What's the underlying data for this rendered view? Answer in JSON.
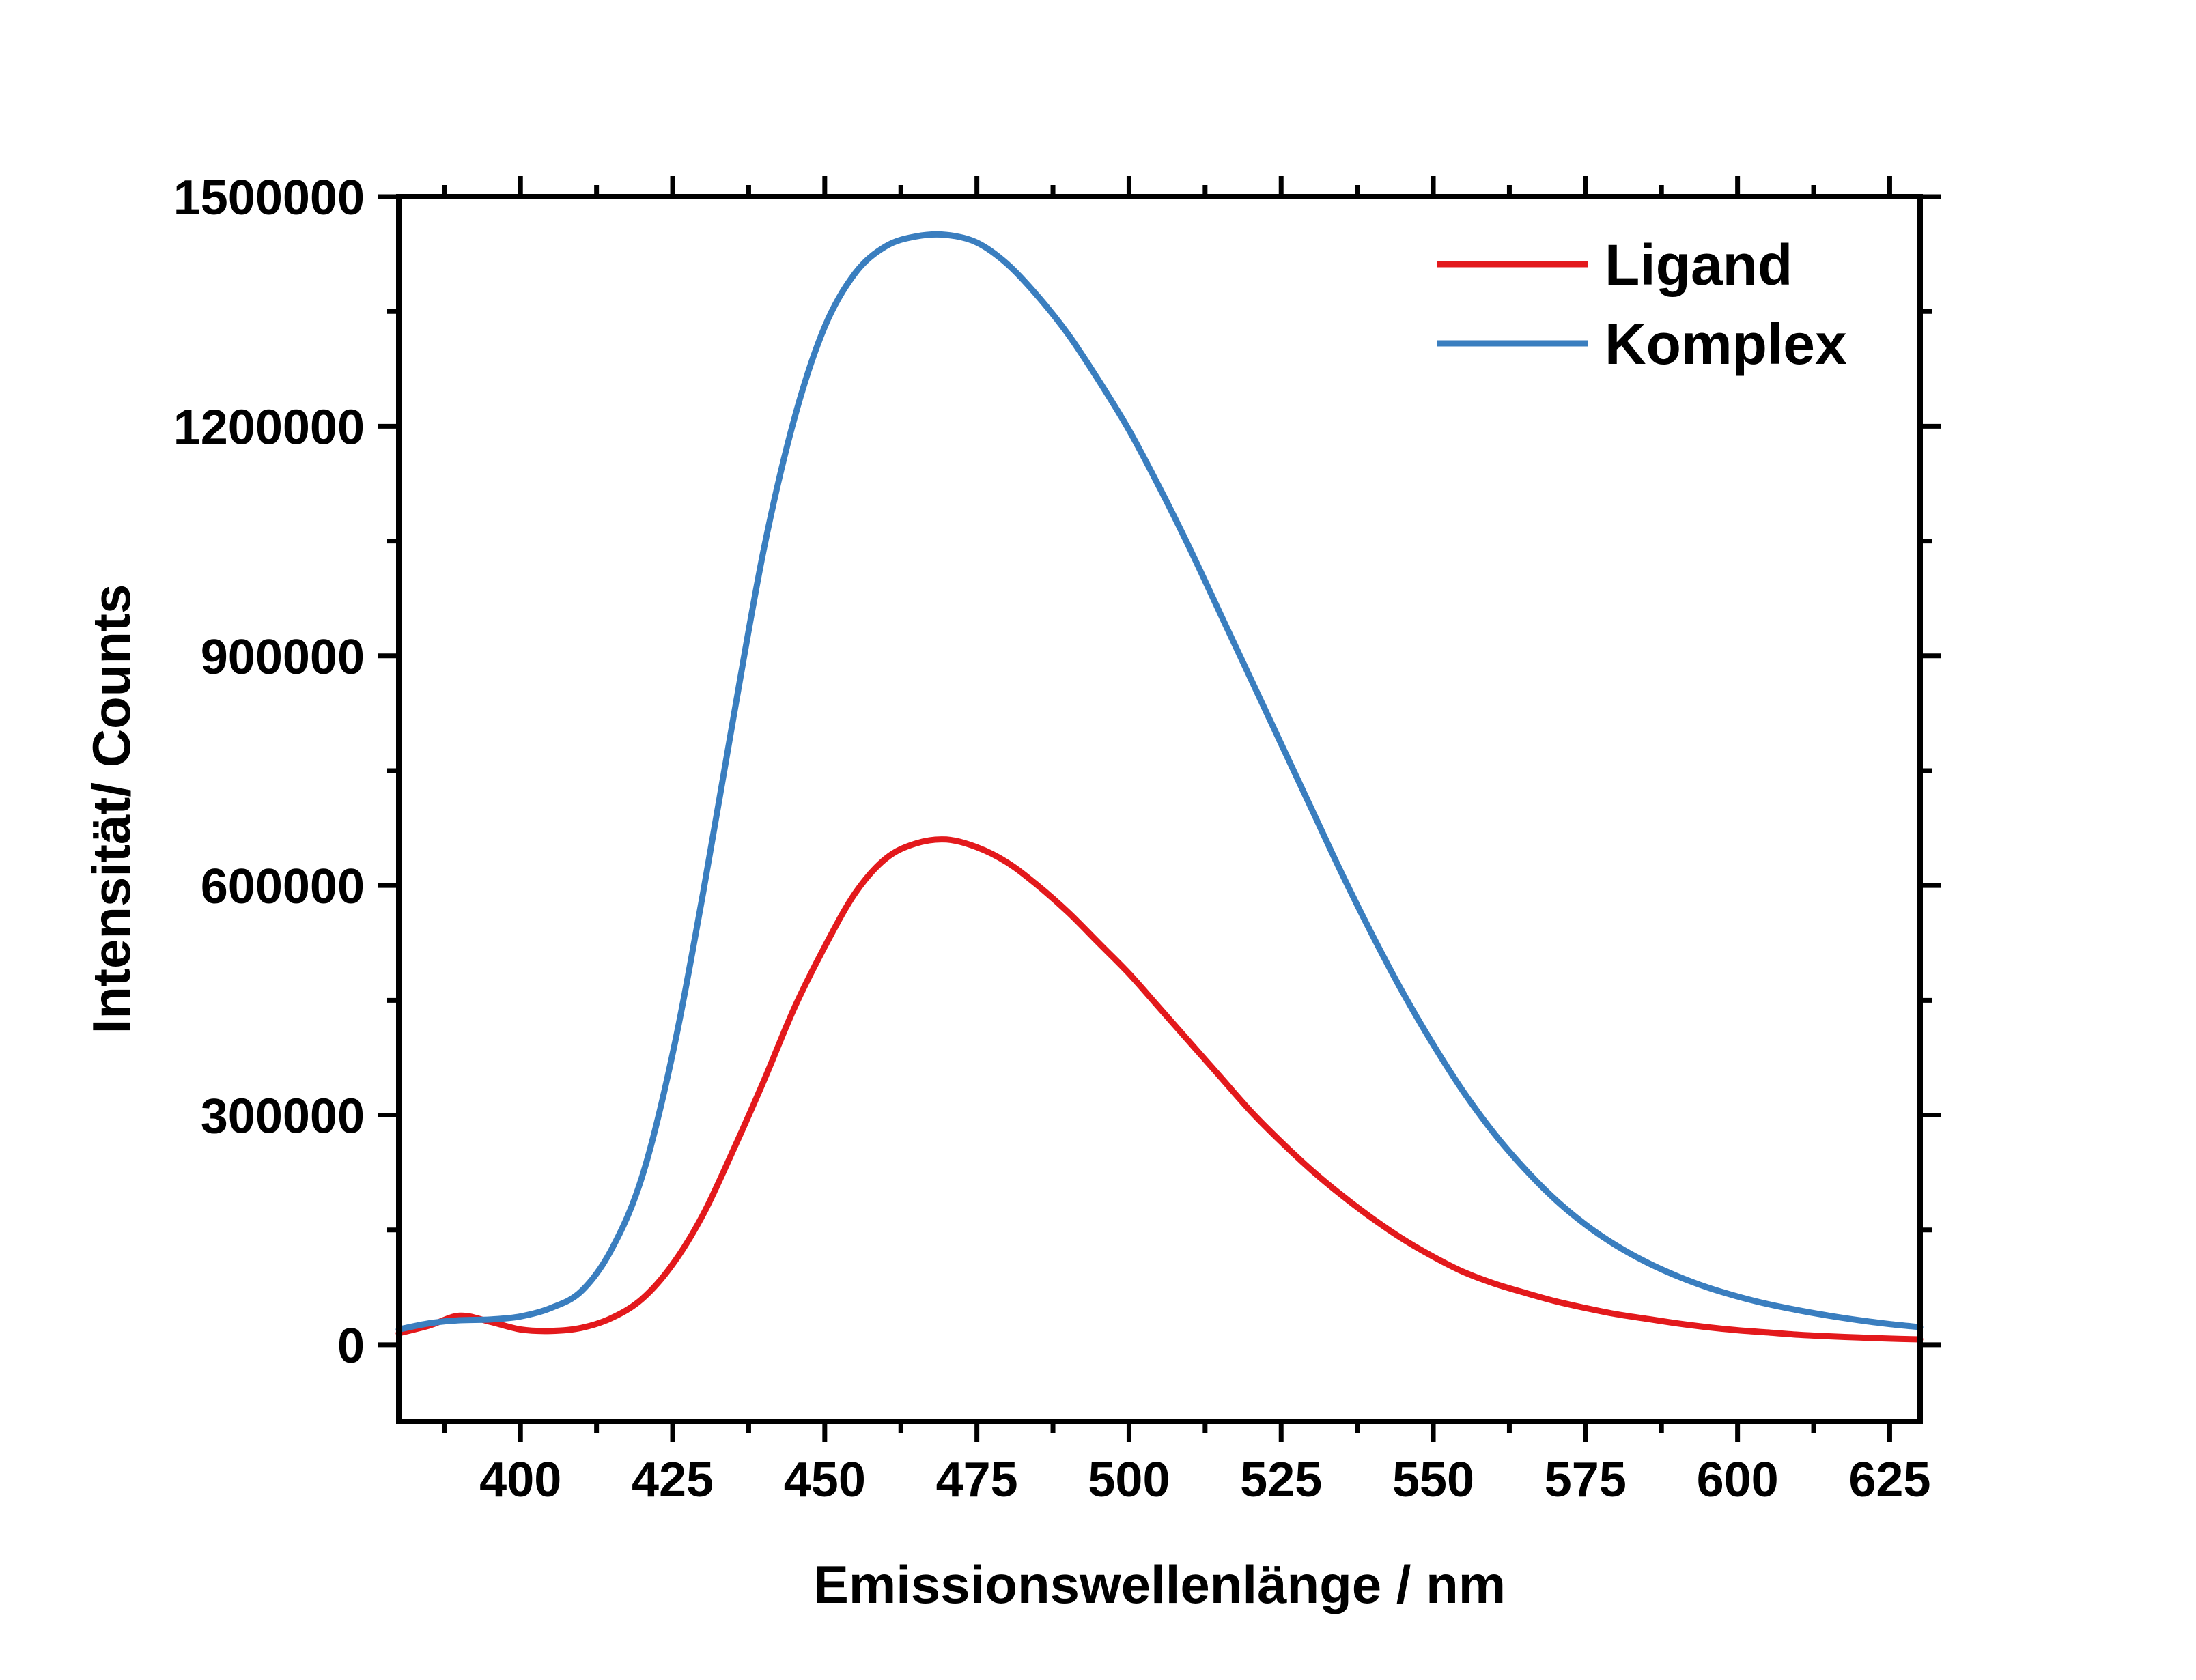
{
  "chart_data": {
    "type": "line",
    "title": "",
    "xlabel": "Emissionswellenlänge / nm",
    "ylabel": "Intensität/ Counts",
    "xlim": [
      380,
      630
    ],
    "ylim": [
      -100000,
      1500000
    ],
    "x_ticks": [
      "400",
      "425",
      "450",
      "475",
      "500",
      "525",
      "550",
      "575",
      "600",
      "625"
    ],
    "y_ticks": [
      "0",
      "300000",
      "600000",
      "900000",
      "1200000",
      "1500000"
    ],
    "grid": false,
    "legend": "top-right",
    "series": [
      {
        "name": "Ligand",
        "color": "#e3191c",
        "x": [
          380,
          385,
          390,
          395,
          400,
          405,
          410,
          415,
          420,
          425,
          430,
          435,
          440,
          445,
          450,
          455,
          460,
          465,
          470,
          475,
          480,
          485,
          490,
          495,
          500,
          505,
          510,
          515,
          520,
          525,
          530,
          535,
          540,
          545,
          550,
          555,
          560,
          565,
          570,
          575,
          580,
          585,
          590,
          595,
          600,
          605,
          610,
          615,
          620,
          625,
          630
        ],
        "y": [
          15000,
          25000,
          38000,
          30000,
          20000,
          18000,
          22000,
          35000,
          60000,
          105000,
          170000,
          255000,
          345000,
          440000,
          520000,
          590000,
          635000,
          655000,
          660000,
          650000,
          630000,
          600000,
          565000,
          525000,
          485000,
          440000,
          395000,
          350000,
          305000,
          265000,
          228000,
          195000,
          165000,
          138000,
          115000,
          95000,
          80000,
          68000,
          57000,
          48000,
          40000,
          34000,
          28000,
          23000,
          19000,
          16000,
          13000,
          11000,
          9500,
          8000,
          7000
        ]
      },
      {
        "name": "Komplex",
        "color": "#3a7ebf",
        "x": [
          380,
          385,
          390,
          395,
          400,
          405,
          410,
          415,
          420,
          425,
          430,
          435,
          440,
          445,
          450,
          455,
          460,
          465,
          470,
          475,
          480,
          485,
          490,
          495,
          500,
          505,
          510,
          515,
          520,
          525,
          530,
          535,
          540,
          545,
          550,
          555,
          560,
          565,
          570,
          575,
          580,
          585,
          590,
          595,
          600,
          605,
          610,
          615,
          620,
          625,
          630
        ],
        "y": [
          20000,
          28000,
          32000,
          33000,
          37000,
          48000,
          70000,
          125000,
          220000,
          380000,
          590000,
          820000,
          1040000,
          1210000,
          1330000,
          1400000,
          1435000,
          1448000,
          1450000,
          1440000,
          1412000,
          1370000,
          1320000,
          1260000,
          1195000,
          1120000,
          1040000,
          955000,
          870000,
          785000,
          700000,
          615000,
          535000,
          460000,
          392000,
          330000,
          276000,
          230000,
          190000,
          157000,
          130000,
          108000,
          90000,
          75000,
          63000,
          53000,
          45000,
          38000,
          32000,
          27000,
          23000
        ]
      }
    ]
  }
}
